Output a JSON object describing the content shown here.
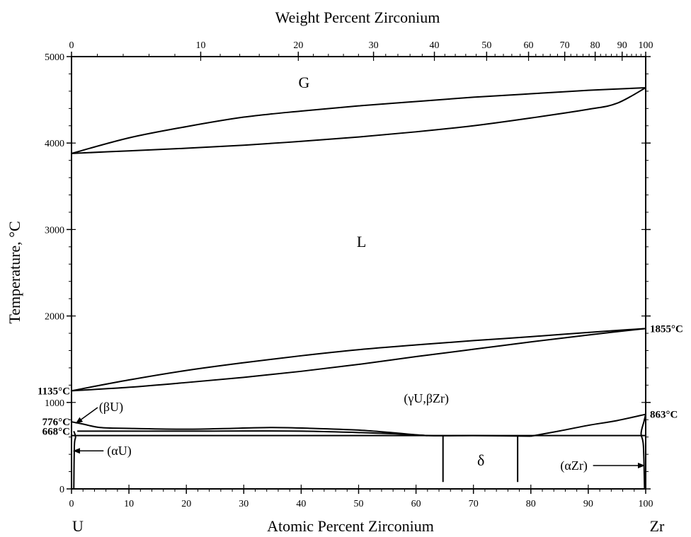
{
  "chart_data": {
    "type": "phase-diagram",
    "title": "",
    "top_axis_label": "Weight Percent Zirconium",
    "xlabel": "Atomic Percent Zirconium",
    "ylabel": "Temperature, °C",
    "left_element": "U",
    "right_element": "Zr",
    "xlim": [
      0,
      100
    ],
    "ylim": [
      0,
      5000
    ],
    "x_ticks": [
      0,
      10,
      20,
      30,
      40,
      50,
      60,
      70,
      80,
      90,
      100
    ],
    "x_tick_labels": [
      "0",
      "10",
      "20",
      "30",
      "40",
      "50",
      "60",
      "70",
      "80",
      "90",
      "100"
    ],
    "y_ticks": [
      0,
      1000,
      2000,
      3000,
      4000,
      5000
    ],
    "y_tick_labels": [
      "0",
      "1000",
      "2000",
      "3000",
      "4000",
      "5000"
    ],
    "weight_percent_ticks": [
      {
        "wt": 0,
        "at": 0,
        "label": "0"
      },
      {
        "wt": 10,
        "at": 22.5,
        "label": "10"
      },
      {
        "wt": 20,
        "at": 39.5,
        "label": "20"
      },
      {
        "wt": 30,
        "at": 52.6,
        "label": "30"
      },
      {
        "wt": 40,
        "at": 63.2,
        "label": "40"
      },
      {
        "wt": 50,
        "at": 72.3,
        "label": "50"
      },
      {
        "wt": 60,
        "at": 79.6,
        "label": "60"
      },
      {
        "wt": 70,
        "at": 85.9,
        "label": "70"
      },
      {
        "wt": 80,
        "at": 91.2,
        "label": "80"
      },
      {
        "wt": 90,
        "at": 95.9,
        "label": "90"
      },
      {
        "wt": 100,
        "at": 100,
        "label": "100"
      }
    ],
    "phase_boundaries": [
      {
        "name": "gas-liquid upper",
        "points": [
          [
            0,
            3880
          ],
          [
            10,
            4060
          ],
          [
            20,
            4190
          ],
          [
            30,
            4300
          ],
          [
            40,
            4370
          ],
          [
            50,
            4430
          ],
          [
            60,
            4480
          ],
          [
            70,
            4530
          ],
          [
            80,
            4570
          ],
          [
            90,
            4610
          ],
          [
            100,
            4640
          ]
        ]
      },
      {
        "name": "gas-liquid lower",
        "points": [
          [
            0,
            3880
          ],
          [
            10,
            3910
          ],
          [
            20,
            3940
          ],
          [
            30,
            3975
          ],
          [
            40,
            4020
          ],
          [
            50,
            4070
          ],
          [
            60,
            4130
          ],
          [
            70,
            4200
          ],
          [
            80,
            4290
          ],
          [
            90,
            4390
          ],
          [
            95,
            4460
          ],
          [
            100,
            4640
          ]
        ]
      },
      {
        "name": "liquidus",
        "points": [
          [
            0,
            1135
          ],
          [
            10,
            1260
          ],
          [
            20,
            1370
          ],
          [
            30,
            1460
          ],
          [
            40,
            1540
          ],
          [
            50,
            1610
          ],
          [
            60,
            1665
          ],
          [
            70,
            1715
          ],
          [
            80,
            1760
          ],
          [
            90,
            1810
          ],
          [
            100,
            1855
          ]
        ]
      },
      {
        "name": "solidus",
        "points": [
          [
            0,
            1135
          ],
          [
            10,
            1175
          ],
          [
            20,
            1230
          ],
          [
            30,
            1290
          ],
          [
            40,
            1360
          ],
          [
            50,
            1440
          ],
          [
            60,
            1530
          ],
          [
            70,
            1615
          ],
          [
            80,
            1700
          ],
          [
            90,
            1780
          ],
          [
            100,
            1855
          ]
        ]
      },
      {
        "name": "gammaU-betaZr lower boundary",
        "points": [
          [
            0,
            776
          ],
          [
            2,
            750
          ],
          [
            5,
            710
          ],
          [
            10,
            700
          ],
          [
            20,
            690
          ],
          [
            28,
            700
          ],
          [
            35,
            710
          ],
          [
            42,
            700
          ],
          [
            50,
            680
          ],
          [
            56,
            650
          ],
          [
            62,
            617
          ],
          [
            70,
            617
          ],
          [
            76,
            613
          ],
          [
            80,
            610
          ]
        ]
      },
      {
        "name": "betaZr-alphaZr boundary",
        "points": [
          [
            80,
            610
          ],
          [
            85,
            670
          ],
          [
            90,
            735
          ],
          [
            95,
            790
          ],
          [
            100,
            863
          ]
        ]
      },
      {
        "name": "alphaU upper boundary",
        "points": [
          [
            1,
            668
          ],
          [
            20,
            668
          ],
          [
            40,
            668
          ],
          [
            55,
            640
          ],
          [
            62,
            617
          ]
        ]
      },
      {
        "name": "monotectoid line",
        "points": [
          [
            0,
            617
          ],
          [
            100,
            617
          ]
        ]
      },
      {
        "name": "delta left boundary",
        "points": [
          [
            64.7,
            617
          ],
          [
            64.7,
            80
          ]
        ]
      },
      {
        "name": "delta right boundary",
        "points": [
          [
            77.7,
            613
          ],
          [
            77.7,
            80
          ]
        ]
      },
      {
        "name": "alphaU solvus",
        "points": [
          [
            0.4,
            668
          ],
          [
            0.7,
            600
          ],
          [
            0.5,
            500
          ],
          [
            0.4,
            0
          ]
        ]
      },
      {
        "name": "alphaZr solvus",
        "points": [
          [
            100,
            863
          ],
          [
            99.7,
            780
          ],
          [
            99.2,
            640
          ],
          [
            99.6,
            500
          ],
          [
            99.8,
            0
          ]
        ]
      }
    ],
    "regions": [
      {
        "label": "G",
        "x": 40.5,
        "y": 4640
      },
      {
        "label": "L",
        "x": 50.5,
        "y": 2800
      },
      {
        "label": "(γU,βZr)",
        "x": 61.8,
        "y": 1000
      },
      {
        "label": "δ",
        "x": 71.3,
        "y": 270
      }
    ],
    "phase_labels": [
      {
        "label": "(βU)",
        "x": 4.8,
        "y": 900
      },
      {
        "label": "(αU)",
        "x": 6.2,
        "y": 440
      },
      {
        "label": "(αZr)",
        "x": 87.5,
        "y": 270
      }
    ],
    "temperature_labels": [
      {
        "label": "1135°C",
        "x": 0,
        "y": 1135,
        "side": "left"
      },
      {
        "label": "776°C",
        "x": 0,
        "y": 776,
        "side": "left"
      },
      {
        "label": "668°C",
        "x": 0,
        "y": 668,
        "side": "left"
      },
      {
        "label": "1855°C",
        "x": 100,
        "y": 1855,
        "side": "right"
      },
      {
        "label": "863°C",
        "x": 100,
        "y": 863,
        "side": "right"
      }
    ],
    "grid": false
  }
}
